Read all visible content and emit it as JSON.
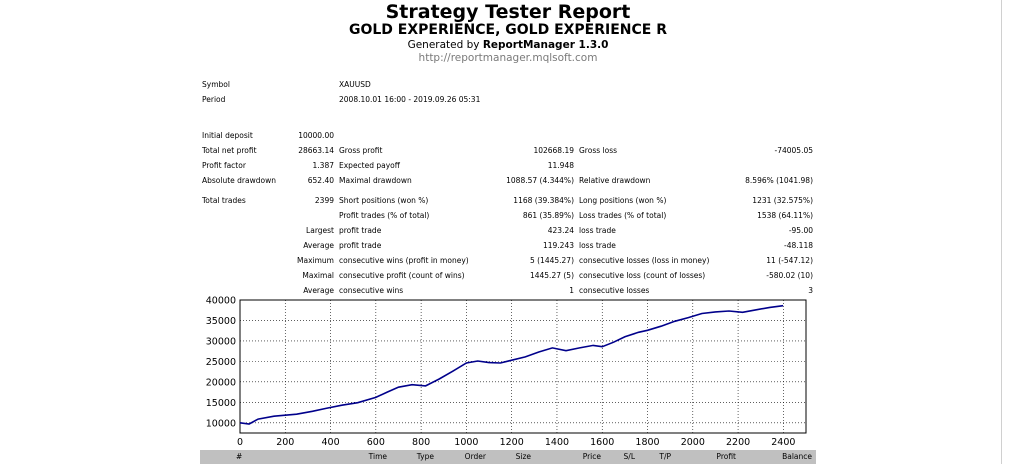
{
  "report": {
    "title": "Strategy Tester Report",
    "subtitle": "GOLD EXPERIENCE, GOLD EXPERIENCE R",
    "generated_prefix": "Generated by ",
    "generator": "ReportManager 1.3.0",
    "url": "http://reportmanager.mqlsoft.com"
  },
  "symbol": {
    "label": "Symbol",
    "value": "XAUUSD"
  },
  "period": {
    "label": "Period",
    "value": "2008.10.01 16:00 - 2019.09.26 05:31"
  },
  "stats": {
    "initial_deposit": {
      "label": "Initial deposit",
      "value": "10000.00"
    },
    "total_net_profit": {
      "label": "Total net profit",
      "value": "28663.14"
    },
    "gross_profit": {
      "label": "Gross profit",
      "value": "102668.19"
    },
    "gross_loss": {
      "label": "Gross loss",
      "value": "-74005.05"
    },
    "profit_factor": {
      "label": "Profit factor",
      "value": "1.387"
    },
    "expected_payoff": {
      "label": "Expected payoff",
      "value": "11.948"
    },
    "absolute_drawdown": {
      "label": "Absolute drawdown",
      "value": "652.40"
    },
    "maximal_drawdown": {
      "label": "Maximal drawdown",
      "value": "1088.57 (4.344%)"
    },
    "relative_drawdown": {
      "label": "Relative drawdown",
      "value": "8.596% (1041.98)"
    },
    "total_trades": {
      "label": "Total trades",
      "value": "2399"
    },
    "short_positions": {
      "label": "Short positions (won %)",
      "value": "1168 (39.384%)"
    },
    "long_positions": {
      "label": "Long positions (won %)",
      "value": "1231 (32.575%)"
    },
    "profit_trades": {
      "label": "Profit trades (% of total)",
      "value": "861 (35.89%)"
    },
    "loss_trades": {
      "label": "Loss trades (% of total)",
      "value": "1538 (64.11%)"
    },
    "largest": {
      "prefix": "Largest",
      "profit_label": "profit trade",
      "profit_value": "423.24",
      "loss_label": "loss trade",
      "loss_value": "-95.00"
    },
    "average": {
      "prefix": "Average",
      "profit_label": "profit trade",
      "profit_value": "119.243",
      "loss_label": "loss trade",
      "loss_value": "-48.118"
    },
    "maximum": {
      "prefix": "Maximum",
      "wins_label": "consecutive wins (profit in money)",
      "wins_value": "5 (1445.27)",
      "losses_label": "consecutive losses (loss in money)",
      "losses_value": "11 (-547.12)"
    },
    "maximal": {
      "prefix": "Maximal",
      "profit_label": "consecutive profit (count of wins)",
      "profit_value": "1445.27 (5)",
      "loss_label": "consecutive loss (count of losses)",
      "loss_value": "-580.02 (10)"
    },
    "average_consec": {
      "prefix": "Average",
      "wins_label": "consecutive wins",
      "wins_value": "1",
      "losses_label": "consecutive losses",
      "losses_value": "3"
    }
  },
  "chart_data": {
    "type": "line",
    "title": "",
    "xlabel": "",
    "ylabel": "",
    "xlim": [
      0,
      2500
    ],
    "ylim": [
      7500,
      40000
    ],
    "x_ticks": [
      0,
      200,
      400,
      600,
      800,
      1000,
      1200,
      1400,
      1600,
      1800,
      2000,
      2200,
      2400
    ],
    "y_ticks": [
      10000,
      15000,
      20000,
      25000,
      30000,
      35000,
      40000
    ],
    "grid": true,
    "line_color": "#00008b",
    "series": [
      {
        "x": [
          0,
          40,
          80,
          150,
          250,
          320,
          380,
          450,
          520,
          600,
          650,
          700,
          760,
          820,
          880,
          940,
          1000,
          1050,
          1100,
          1150,
          1200,
          1260,
          1320,
          1380,
          1440,
          1500,
          1560,
          1600,
          1650,
          1700,
          1760,
          1800,
          1860,
          1920,
          1980,
          2040,
          2100,
          2160,
          2220,
          2280,
          2340,
          2399
        ],
        "y": [
          10000,
          9700,
          10900,
          11600,
          12100,
          12800,
          13500,
          14300,
          14900,
          16200,
          17500,
          18700,
          19300,
          19000,
          20700,
          22600,
          24600,
          25100,
          24700,
          24600,
          25300,
          26100,
          27300,
          28300,
          27600,
          28300,
          28900,
          28600,
          29700,
          31000,
          32100,
          32600,
          33600,
          34800,
          35700,
          36700,
          37100,
          37300,
          37000,
          37600,
          38200,
          38600
        ]
      }
    ]
  },
  "table_header": [
    "#",
    "Time",
    "Type",
    "Order",
    "Size",
    "Price",
    "S/L",
    "T/P",
    "Profit",
    "Balance"
  ]
}
